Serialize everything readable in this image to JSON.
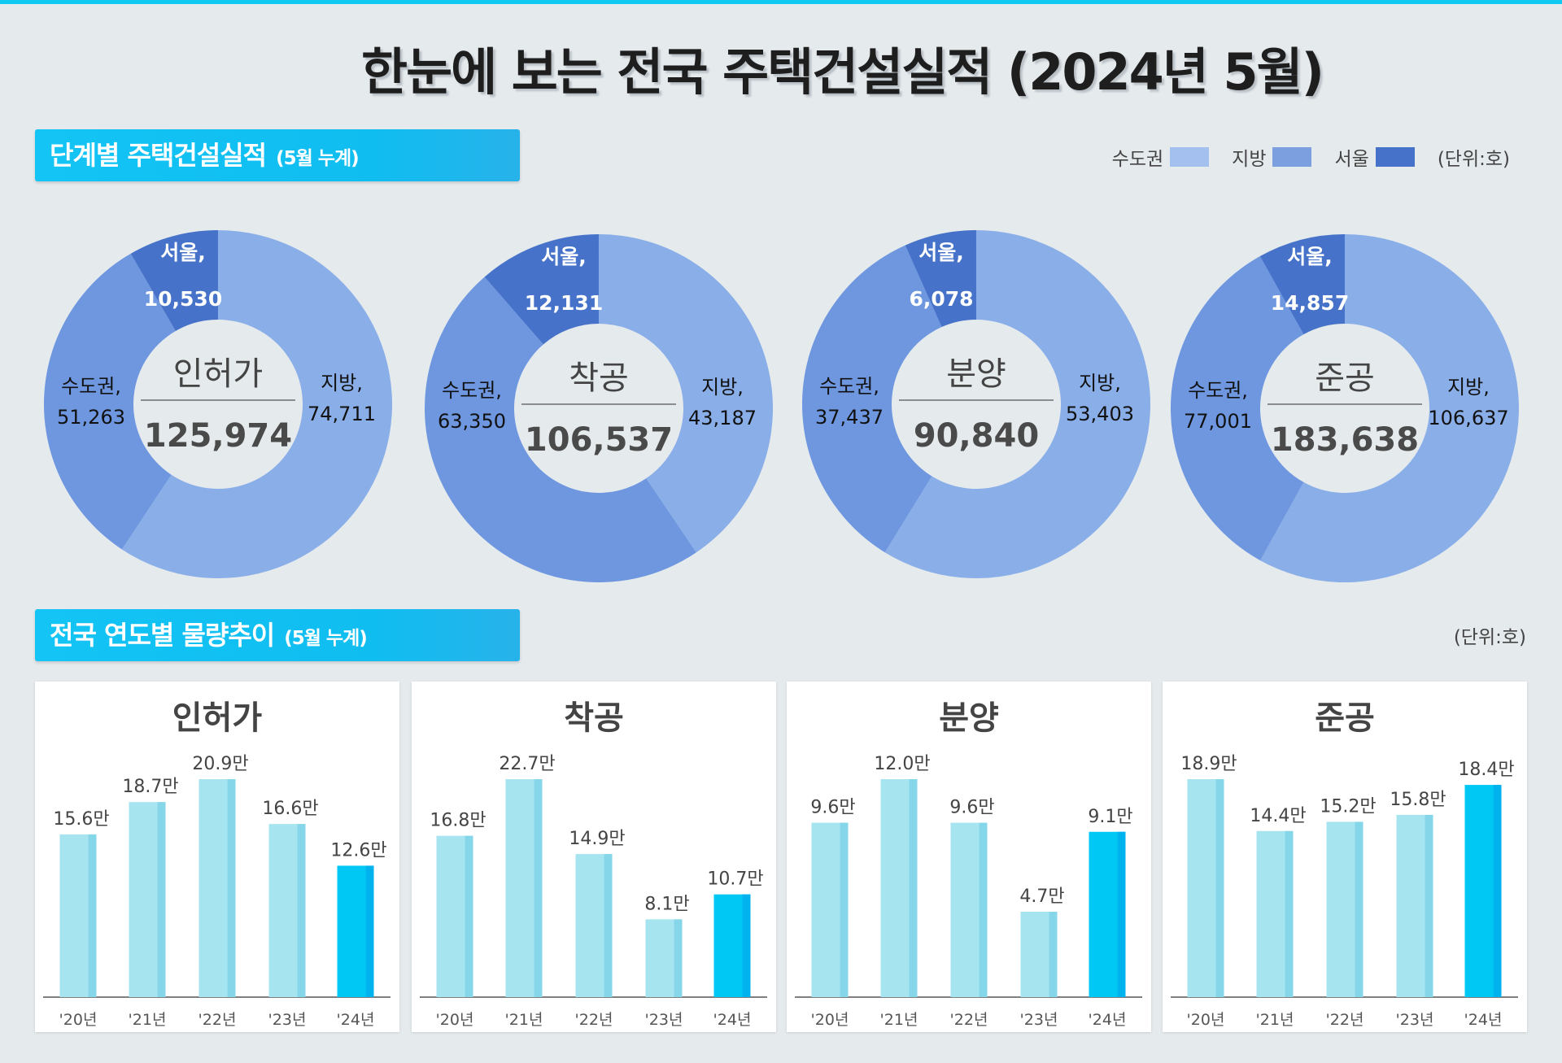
{
  "title": "한눈에 보는 전국 주택건설실적 (2024년 5월)",
  "section1": {
    "label": "단계별 주택건설실적",
    "sub": "(5월 누계)"
  },
  "section2": {
    "label": "전국 연도별 물량추이",
    "sub": "(5월 누계)",
    "unit": "(단위:호)"
  },
  "legend": {
    "items": [
      {
        "label": "수도권",
        "color": "#a3c0ee"
      },
      {
        "label": "지방",
        "color": "#7b9fdf"
      },
      {
        "label": "서울",
        "color": "#4673c9"
      }
    ],
    "unit": "(단위:호)"
  },
  "colors": {
    "jibang": "#8aaee8",
    "sudo": "#6e97e0",
    "seoul": "#4673c9",
    "bar": "#a6e4f0",
    "bar_side": "#86d6ea",
    "bar_hl": "#00c8f5",
    "bar_hl_side": "#00b2ee"
  },
  "chart_data": [
    {
      "type": "pie",
      "donut": true,
      "center_label": "인허가",
      "total": "125,974",
      "slices": [
        {
          "name": "지방,",
          "value": 74711,
          "label": "74,711"
        },
        {
          "name": "수도권,",
          "value": 51263,
          "label": "51,263"
        },
        {
          "name": "서울,",
          "value": 10530,
          "label": "10,530",
          "part_of": "수도권"
        }
      ]
    },
    {
      "type": "pie",
      "donut": true,
      "center_label": "착공",
      "total": "106,537",
      "slices": [
        {
          "name": "지방,",
          "value": 43187,
          "label": "43,187"
        },
        {
          "name": "수도권,",
          "value": 63350,
          "label": "63,350"
        },
        {
          "name": "서울,",
          "value": 12131,
          "label": "12,131",
          "part_of": "수도권"
        }
      ]
    },
    {
      "type": "pie",
      "donut": true,
      "center_label": "분양",
      "total": "90,840",
      "slices": [
        {
          "name": "지방,",
          "value": 53403,
          "label": "53,403"
        },
        {
          "name": "수도권,",
          "value": 37437,
          "label": "37,437"
        },
        {
          "name": "서울,",
          "value": 6078,
          "label": "6,078",
          "part_of": "수도권"
        }
      ]
    },
    {
      "type": "pie",
      "donut": true,
      "center_label": "준공",
      "total": "183,638",
      "slices": [
        {
          "name": "지방,",
          "value": 106637,
          "label": "106,637"
        },
        {
          "name": "수도권,",
          "value": 77001,
          "label": "77,001"
        },
        {
          "name": "서울,",
          "value": 14857,
          "label": "14,857",
          "part_of": "수도권"
        }
      ]
    },
    {
      "type": "bar",
      "title": "인허가",
      "categories": [
        "'20년",
        "'21년",
        "'22년",
        "'23년",
        "'24년"
      ],
      "values": [
        15.6,
        18.7,
        20.9,
        16.6,
        12.6
      ],
      "labels": [
        "15.6만",
        "18.7만",
        "20.9만",
        "16.6만",
        "12.6만"
      ],
      "highlight": "'24년"
    },
    {
      "type": "bar",
      "title": "착공",
      "categories": [
        "'20년",
        "'21년",
        "'22년",
        "'23년",
        "'24년"
      ],
      "values": [
        16.8,
        22.7,
        14.9,
        8.1,
        10.7
      ],
      "labels": [
        "16.8만",
        "22.7만",
        "14.9만",
        "8.1만",
        "10.7만"
      ],
      "highlight": "'24년"
    },
    {
      "type": "bar",
      "title": "분양",
      "categories": [
        "'20년",
        "'21년",
        "'22년",
        "'23년",
        "'24년"
      ],
      "values": [
        9.6,
        12.0,
        9.6,
        4.7,
        9.1
      ],
      "labels": [
        "9.6만",
        "12.0만",
        "9.6만",
        "4.7만",
        "9.1만"
      ],
      "highlight": "'24년"
    },
    {
      "type": "bar",
      "title": "준공",
      "categories": [
        "'20년",
        "'21년",
        "'22년",
        "'23년",
        "'24년"
      ],
      "values": [
        18.9,
        14.4,
        15.2,
        15.8,
        18.4
      ],
      "labels": [
        "18.9만",
        "14.4만",
        "15.2만",
        "15.8만",
        "18.4만"
      ],
      "highlight": "'24년"
    }
  ]
}
